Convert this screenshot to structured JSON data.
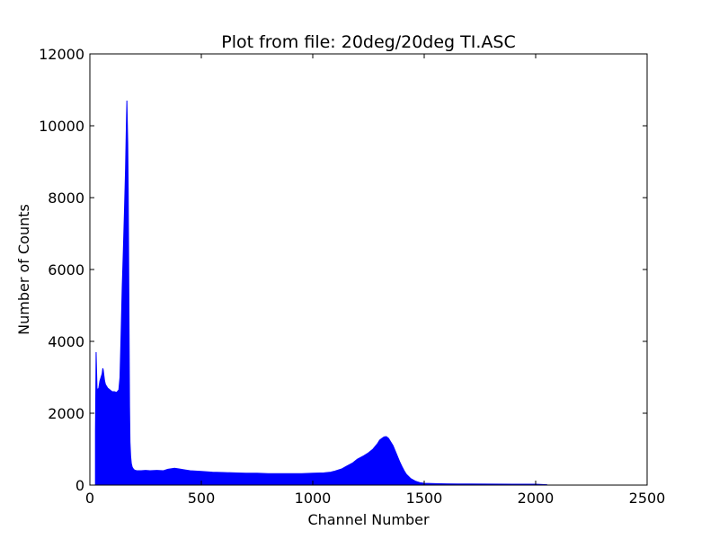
{
  "chart_data": {
    "type": "area",
    "title": "Plot from file: 20deg/20deg TI.ASC",
    "xlabel": "Channel Number",
    "ylabel": "Number of Counts",
    "xlim": [
      0,
      2500
    ],
    "ylim": [
      0,
      12000
    ],
    "xticks": [
      0,
      500,
      1000,
      1500,
      2000,
      2500
    ],
    "yticks": [
      0,
      2000,
      4000,
      6000,
      8000,
      10000,
      12000
    ],
    "xtick_labels": [
      "0",
      "500",
      "1000",
      "1500",
      "2000",
      "2500"
    ],
    "ytick_labels": [
      "0",
      "2000",
      "4000",
      "6000",
      "8000",
      "10000",
      "12000"
    ],
    "grid": false,
    "legend": "none",
    "fill_color": "#0000ff",
    "series": [
      {
        "x": [
          25,
          28,
          30,
          32,
          35,
          40,
          45,
          50,
          55,
          58,
          60,
          63,
          66,
          70,
          75,
          80,
          90,
          100,
          110,
          120,
          130,
          135,
          140,
          145,
          150,
          155,
          160,
          163,
          166,
          170,
          172,
          174,
          176,
          178,
          180,
          183,
          186,
          190,
          195,
          200,
          205,
          210,
          230,
          250,
          270,
          300,
          330,
          350,
          380,
          400,
          430,
          450,
          500,
          550,
          600,
          650,
          700,
          750,
          800,
          850,
          900,
          950,
          1000,
          1050,
          1080,
          1100,
          1130,
          1150,
          1180,
          1200,
          1230,
          1250,
          1270,
          1290,
          1300,
          1310,
          1320,
          1330,
          1340,
          1350,
          1360,
          1370,
          1380,
          1390,
          1400,
          1410,
          1420,
          1440,
          1460,
          1480,
          1500,
          1550,
          1600,
          1700,
          1800,
          1900,
          2000,
          2050
        ],
        "y": [
          1500,
          3700,
          3200,
          2700,
          2650,
          2700,
          2900,
          3000,
          3100,
          3250,
          3200,
          3050,
          2900,
          2800,
          2750,
          2700,
          2650,
          2600,
          2600,
          2580,
          2650,
          3000,
          4200,
          5500,
          6500,
          7600,
          8800,
          9800,
          10700,
          9500,
          8200,
          6300,
          4200,
          2200,
          1200,
          800,
          600,
          500,
          450,
          420,
          410,
          400,
          400,
          410,
          400,
          410,
          400,
          440,
          470,
          450,
          420,
          400,
          380,
          360,
          350,
          340,
          330,
          330,
          320,
          320,
          320,
          320,
          330,
          340,
          360,
          390,
          450,
          520,
          620,
          720,
          820,
          900,
          1000,
          1150,
          1250,
          1300,
          1340,
          1350,
          1300,
          1200,
          1100,
          950,
          800,
          650,
          520,
          400,
          300,
          180,
          110,
          70,
          50,
          40,
          35,
          30,
          28,
          25,
          25,
          10
        ]
      }
    ]
  }
}
